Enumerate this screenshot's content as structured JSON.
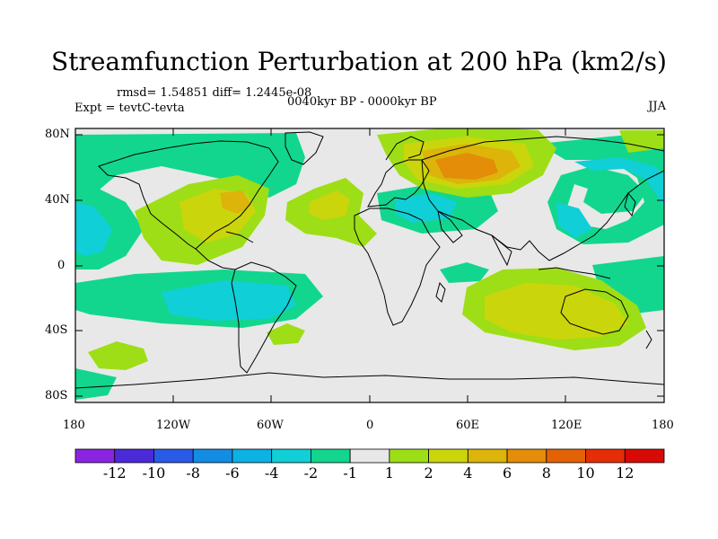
{
  "title": "Streamfunction Perturbation at 200 hPa (km2/s)",
  "stats_line": "rmsd= 1.54851 diff= 1.2445e-08",
  "experiment_label": "Expt = tevtC-tevta",
  "period_label": "0040kyr BP - 0000kyr BP",
  "season_label": "JJA",
  "lat_ticks": [
    "80N",
    "40N",
    "0",
    "40S",
    "80S"
  ],
  "lon_ticks": [
    "180",
    "120W",
    "60W",
    "0",
    "60E",
    "120E",
    "180"
  ],
  "colorbar": {
    "labels": [
      "-12",
      "-10",
      "-8",
      "-6",
      "-4",
      "-2",
      "-1",
      "1",
      "2",
      "4",
      "6",
      "8",
      "10",
      "12"
    ],
    "colors": [
      "#8a24e0",
      "#4b2ad8",
      "#2a5be6",
      "#138ce4",
      "#0cb2e2",
      "#10cfd6",
      "#12d68e",
      "#e8e8e8",
      "#9ede16",
      "#cbd50c",
      "#dcb40a",
      "#e38d08",
      "#e46206",
      "#e52d06",
      "#d80a06"
    ]
  },
  "colors": {
    "land_outline": "#000000",
    "background_field": "#e8e8e8",
    "positive_1_2": "#9ede16",
    "positive_2_4": "#cbd50c",
    "positive_4_6": "#dcb40a",
    "positive_6_8": "#e38d08",
    "negative_1_2": "#12d68e",
    "negative_2_4": "#10cfd6"
  }
}
